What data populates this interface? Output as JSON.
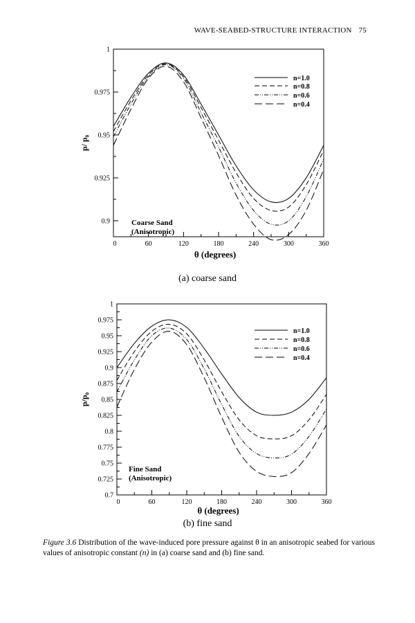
{
  "header": {
    "running_title": "WAVE-SEABED-STRUCTURE INTERACTION",
    "page_number": "75"
  },
  "chart_data": [
    {
      "type": "line",
      "title": "(a) coarse sand",
      "xlabel": "θ (degrees)",
      "ylabel": "p/ p₀",
      "annotation": [
        "Coarse Sand",
        "(Anisotropic)"
      ],
      "xlim": [
        0,
        360
      ],
      "ylim": [
        0.8907,
        1
      ],
      "xticks": [
        0,
        60,
        120,
        180,
        240,
        300,
        360
      ],
      "yticks": [
        0.9,
        0.925,
        0.95,
        0.975,
        1
      ],
      "ytick_labels": [
        "0.9",
        "0.925",
        "0.95",
        "0.975",
        "1"
      ],
      "legend_position": "top-right",
      "x": [
        0,
        30,
        60,
        90,
        120,
        150,
        180,
        210,
        240,
        270,
        300,
        330,
        360
      ],
      "series": [
        {
          "name": "n=1.0",
          "style": "solid",
          "values": [
            0.955,
            0.972,
            0.986,
            0.992,
            0.985,
            0.968,
            0.95,
            0.932,
            0.918,
            0.911,
            0.913,
            0.925,
            0.944
          ]
        },
        {
          "name": "n=0.8",
          "style": "dashed",
          "values": [
            0.952,
            0.97,
            0.985,
            0.9915,
            0.984,
            0.966,
            0.947,
            0.928,
            0.913,
            0.906,
            0.908,
            0.921,
            0.941
          ]
        },
        {
          "name": "n=0.6",
          "style": "dash-dot-dot",
          "values": [
            0.949,
            0.968,
            0.984,
            0.991,
            0.983,
            0.963,
            0.943,
            0.922,
            0.906,
            0.898,
            0.9,
            0.914,
            0.936
          ]
        },
        {
          "name": "n=0.4",
          "style": "long-dash",
          "values": [
            0.944,
            0.965,
            0.983,
            0.99,
            0.981,
            0.96,
            0.938,
            0.915,
            0.898,
            0.889,
            0.892,
            0.906,
            0.93
          ]
        }
      ]
    },
    {
      "type": "line",
      "title": "(b) fine sand",
      "xlabel": "θ (degrees)",
      "ylabel": "p/p₀",
      "annotation": [
        "Fine Sand",
        "(Anisotropic)"
      ],
      "xlim": [
        0,
        360
      ],
      "ylim": [
        0.7,
        1
      ],
      "xticks": [
        0,
        60,
        120,
        180,
        240,
        300,
        360
      ],
      "yticks": [
        0.7,
        0.725,
        0.75,
        0.775,
        0.8,
        0.825,
        0.85,
        0.875,
        0.9,
        0.925,
        0.95,
        0.975,
        1
      ],
      "ytick_labels": [
        "0.7",
        "0.725",
        "0.75",
        "0.775",
        "0.8",
        "0.825",
        "0.85",
        "0.875",
        "0.9",
        "0.925",
        "0.95",
        "0.975",
        "1"
      ],
      "legend_position": "top-right",
      "x": [
        0,
        30,
        60,
        90,
        120,
        150,
        180,
        210,
        240,
        270,
        300,
        330,
        360
      ],
      "series": [
        {
          "name": "n=1.0",
          "style": "solid",
          "values": [
            0.9,
            0.938,
            0.965,
            0.975,
            0.963,
            0.93,
            0.89,
            0.853,
            0.83,
            0.825,
            0.83,
            0.85,
            0.884
          ]
        },
        {
          "name": "n=0.8",
          "style": "dashed",
          "values": [
            0.88,
            0.925,
            0.957,
            0.968,
            0.953,
            0.912,
            0.862,
            0.818,
            0.793,
            0.788,
            0.793,
            0.818,
            0.858
          ]
        },
        {
          "name": "n=0.6",
          "style": "dash-dot-dot",
          "values": [
            0.862,
            0.912,
            0.95,
            0.962,
            0.944,
            0.898,
            0.842,
            0.792,
            0.765,
            0.758,
            0.764,
            0.792,
            0.835
          ]
        },
        {
          "name": "n=0.4",
          "style": "long-dash",
          "values": [
            0.838,
            0.897,
            0.94,
            0.957,
            0.936,
            0.884,
            0.822,
            0.767,
            0.737,
            0.729,
            0.735,
            0.765,
            0.81
          ]
        }
      ]
    }
  ],
  "caption": {
    "label": "Figure 3.6",
    "text_1": " Distribution of the wave-induced pore pressure against θ in an anisotropic seabed for various values of anisotropic constant ",
    "italic_n": "(n)",
    "text_2": " in (a) coarse sand and (b) fine sand."
  }
}
